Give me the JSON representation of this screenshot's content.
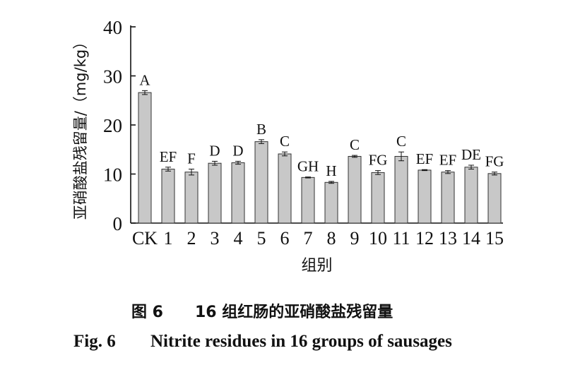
{
  "chart_data": {
    "type": "bar",
    "categories": [
      "CK",
      "1",
      "2",
      "3",
      "4",
      "5",
      "6",
      "7",
      "8",
      "9",
      "10",
      "11",
      "12",
      "13",
      "14",
      "15"
    ],
    "values": [
      26.6,
      11.0,
      10.4,
      12.2,
      12.3,
      16.6,
      14.1,
      9.3,
      8.3,
      13.6,
      10.3,
      13.6,
      10.8,
      10.4,
      11.4,
      10.1
    ],
    "errors": [
      0.4,
      0.4,
      0.6,
      0.4,
      0.3,
      0.4,
      0.4,
      0.1,
      0.2,
      0.2,
      0.4,
      0.9,
      0.1,
      0.3,
      0.4,
      0.3
    ],
    "significance_labels": [
      "A",
      "EF",
      "F",
      "D",
      "D",
      "B",
      "C",
      "GH",
      "H",
      "C",
      "FG",
      "C",
      "EF",
      "EF",
      "DE",
      "FG"
    ],
    "ylabel": "亚硝酸盐残留量/（mg/kg）",
    "xlabel": "组别",
    "ylim": [
      0,
      40
    ],
    "yticks": [
      "0",
      "10",
      "20",
      "30",
      "40"
    ],
    "grid": false,
    "bar_color": "#c8c8c8"
  },
  "caption": {
    "cn_number": "图 6",
    "cn_text": "16 组红肠的亚硝酸盐残留量",
    "en_number": "Fig. 6",
    "en_text": "Nitrite residues in 16 groups of sausages"
  }
}
